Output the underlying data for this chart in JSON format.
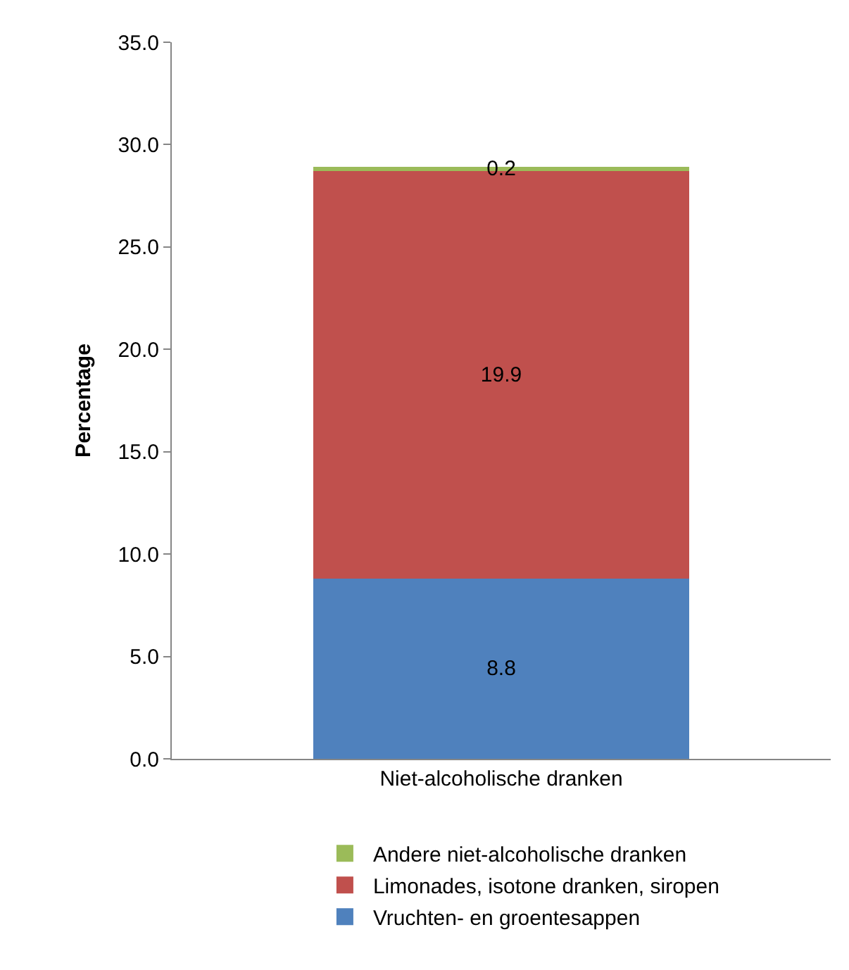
{
  "chart_data": {
    "type": "bar",
    "stacked": true,
    "ylabel": "Percentage",
    "categories": [
      "Niet-alcoholische dranken"
    ],
    "series": [
      {
        "name": "Vruchten- en groentesappen",
        "color": "#4f81bd",
        "values": [
          8.8
        ]
      },
      {
        "name": "Limonades, isotone dranken, siropen",
        "color": "#c0504d",
        "values": [
          19.9
        ]
      },
      {
        "name": "Andere niet-alcoholische dranken",
        "color": "#9bbb59",
        "values": [
          0.2
        ]
      }
    ],
    "ylim": [
      0,
      35
    ],
    "yticks": [
      {
        "value": 0,
        "label": "0.0"
      },
      {
        "value": 5,
        "label": "5.0"
      },
      {
        "value": 10,
        "label": "10.0"
      },
      {
        "value": 15,
        "label": "15.0"
      },
      {
        "value": 20,
        "label": "20.0"
      },
      {
        "value": 25,
        "label": "25.0"
      },
      {
        "value": 30,
        "label": "30.0"
      },
      {
        "value": 35,
        "label": "35.0"
      }
    ],
    "data_labels": true,
    "grid": false,
    "legend": "bottom"
  }
}
